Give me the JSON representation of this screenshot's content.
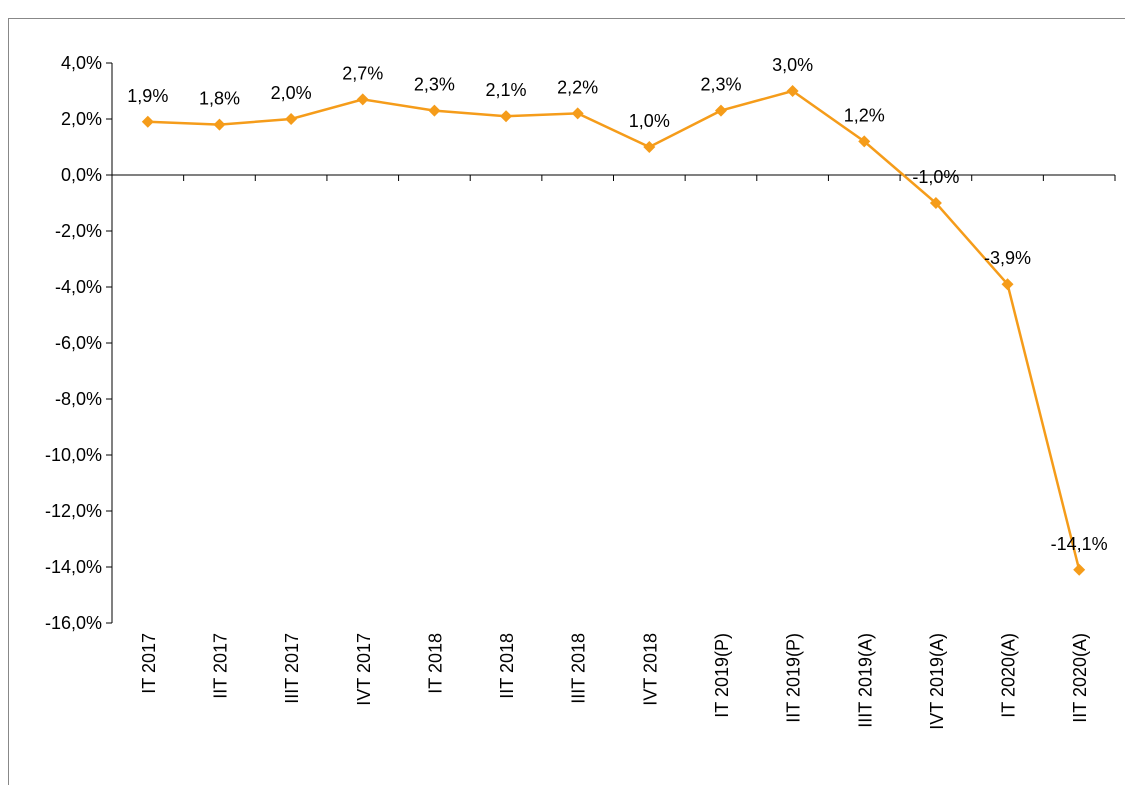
{
  "chart_data": {
    "type": "line",
    "categories": [
      "IT 2017",
      "IIT 2017",
      "IIIT 2017",
      "IVT 2017",
      "IT 2018",
      "IIT 2018",
      "IIIT 2018",
      "IVT 2018",
      "IT 2019(P)",
      "IIT 2019(P)",
      "IIIT 2019(A)",
      "IVT 2019(A)",
      "IT 2020(A)",
      "IIT 2020(A)"
    ],
    "values": [
      1.9,
      1.8,
      2.0,
      2.7,
      2.3,
      2.1,
      2.2,
      1.0,
      2.3,
      3.0,
      1.2,
      -1.0,
      -3.9,
      -14.1
    ],
    "value_labels": [
      "1,9%",
      "1,8%",
      "2,0%",
      "2,7%",
      "2,3%",
      "2,1%",
      "2,2%",
      "1,0%",
      "2,3%",
      "3,0%",
      "1,2%",
      "-1,0%",
      "-3,9%",
      "-14,1%"
    ],
    "color": "#f59c1a",
    "ylim": [
      -16,
      4
    ],
    "yticks": [
      {
        "value": -16,
        "label": "-16,0%"
      },
      {
        "value": -14,
        "label": "-14,0%"
      },
      {
        "value": -12,
        "label": "-12,0%"
      },
      {
        "value": -10,
        "label": "-10,0%"
      },
      {
        "value": -8,
        "label": "-8,0%"
      },
      {
        "value": -6,
        "label": "-6,0%"
      },
      {
        "value": -4,
        "label": "-4,0%"
      },
      {
        "value": -2,
        "label": "-2,0%"
      },
      {
        "value": 0,
        "label": "0,0%"
      },
      {
        "value": 2,
        "label": "2,0%"
      },
      {
        "value": 4,
        "label": "4,0%"
      }
    ]
  }
}
